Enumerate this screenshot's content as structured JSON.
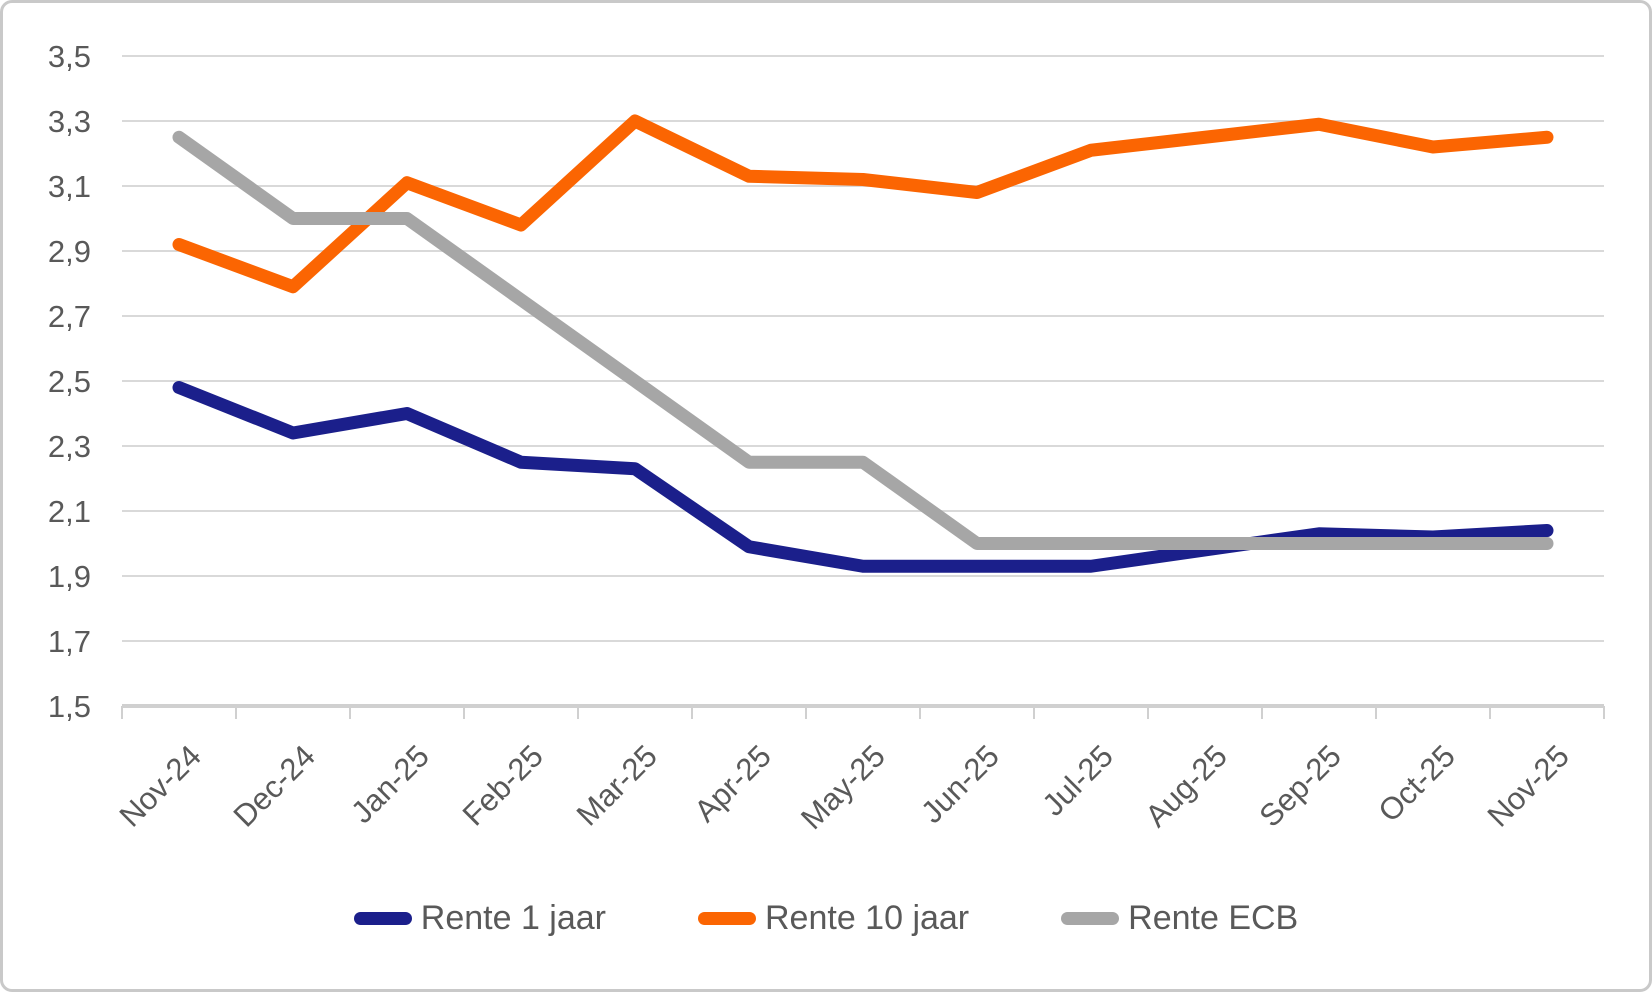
{
  "style": {
    "background": "#FFFFFF",
    "frame_border_color": "#C9C9C9",
    "grid_color": "#D9D9D9",
    "axis_color": "#D0D0D0",
    "tick_label_color": "#595959",
    "legend_text_color": "#595959"
  },
  "chart_data": {
    "type": "line",
    "title": "",
    "xlabel": "",
    "ylabel": "",
    "categories": [
      "Nov-24",
      "Dec-24",
      "Jan-25",
      "Feb-25",
      "Mar-25",
      "Apr-25",
      "May-25",
      "Jun-25",
      "Jul-25",
      "Aug-25",
      "Sep-25",
      "Oct-25",
      "Nov-25"
    ],
    "series": [
      {
        "name": "Rente 1 jaar",
        "color": "#1B1F8B",
        "values": [
          2.48,
          2.34,
          2.4,
          2.25,
          2.23,
          1.99,
          1.93,
          1.93,
          1.93,
          1.98,
          2.03,
          2.02,
          2.04
        ]
      },
      {
        "name": "Rente 10 jaar",
        "color": "#FB6502",
        "values": [
          2.92,
          2.79,
          3.11,
          2.98,
          3.3,
          3.13,
          3.12,
          3.08,
          3.21,
          3.25,
          3.29,
          3.22,
          3.25
        ]
      },
      {
        "name": "Rente ECB",
        "color": "#A6A6A6",
        "values": [
          3.25,
          3.0,
          3.0,
          2.75,
          2.5,
          2.25,
          2.25,
          2.0,
          2.0,
          2.0,
          2.0,
          2.0,
          2.0
        ]
      }
    ],
    "ylim": [
      1.5,
      3.5
    ],
    "ytick_step": 0.2,
    "ytick_labels": [
      "1,5",
      "1,7",
      "1,9",
      "2,1",
      "2,3",
      "2,5",
      "2,7",
      "2,9",
      "3,1",
      "3,3",
      "3,5"
    ],
    "decimal_separator": ",",
    "grid": true,
    "legend_position": "bottom"
  }
}
